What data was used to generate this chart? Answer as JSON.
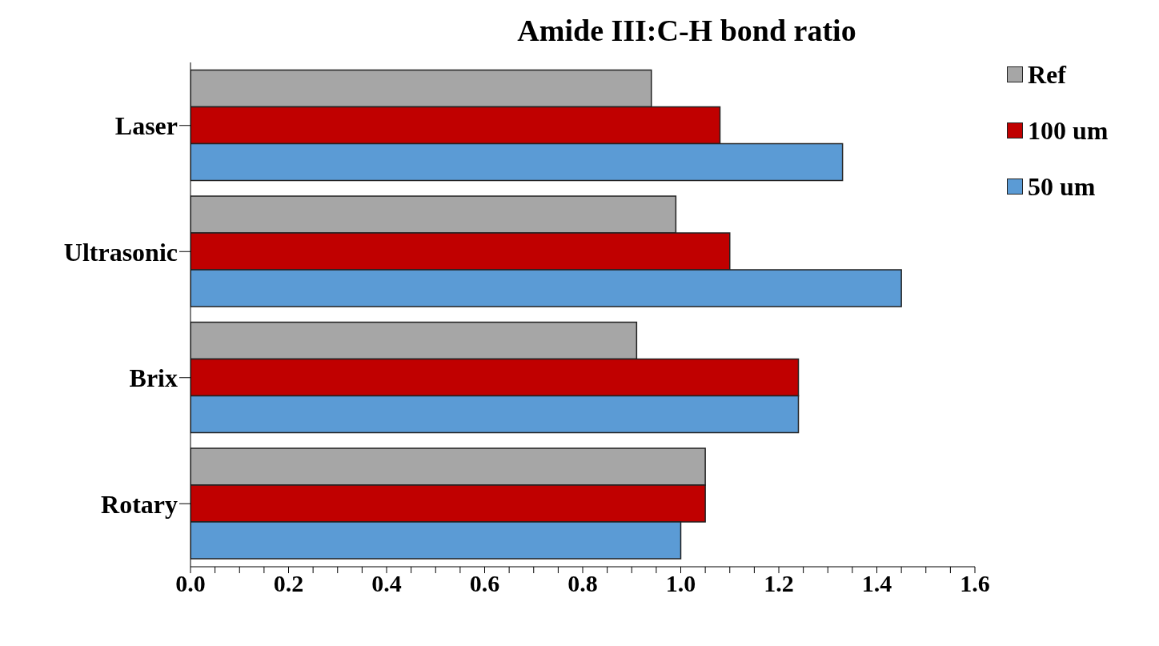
{
  "chart_data": {
    "type": "bar",
    "orientation": "horizontal",
    "title": "Amide III:C-H bond ratio",
    "categories": [
      "Laser",
      "Ultrasonic",
      "Brix",
      "Rotary"
    ],
    "series": [
      {
        "name": "Ref",
        "color": "#a6a6a6",
        "values": [
          0.94,
          0.99,
          0.91,
          1.05
        ]
      },
      {
        "name": "100 um",
        "color": "#c00000",
        "values": [
          1.08,
          1.1,
          1.24,
          1.05
        ]
      },
      {
        "name": "50 um",
        "color": "#5b9bd5",
        "values": [
          1.33,
          1.45,
          1.24,
          1.0
        ]
      }
    ],
    "xlim": [
      0,
      1.6
    ],
    "xticks": [
      "0.0",
      {
        "value": 0.05,
        "label": null
      },
      {
        "value": 0.1,
        "label": null
      },
      {
        "value": 0.15,
        "label": null
      },
      {
        "value": 0.2,
        "label": "0.2"
      },
      {
        "value": 0.25,
        "label": null
      },
      {
        "value": 0.3,
        "label": null
      },
      {
        "value": 0.35,
        "label": null
      },
      {
        "value": 0.4,
        "label": "0.4"
      },
      {
        "value": 0.45,
        "label": null
      },
      {
        "value": 0.5,
        "label": null
      },
      {
        "value": 0.55,
        "label": null
      },
      {
        "value": 0.6,
        "label": "0.6"
      },
      {
        "value": 0.65,
        "label": null
      },
      {
        "value": 0.7,
        "label": null
      },
      {
        "value": 0.75,
        "label": null
      },
      {
        "value": 0.8,
        "label": "0.8"
      },
      {
        "value": 0.85,
        "label": null
      },
      {
        "value": 0.9,
        "label": null
      },
      {
        "value": 0.95,
        "label": null
      },
      {
        "value": 1.0,
        "label": "1.0"
      },
      {
        "value": 1.05,
        "label": null
      },
      {
        "value": 1.1,
        "label": null
      },
      {
        "value": 1.15,
        "label": null
      },
      {
        "value": 1.2,
        "label": "1.2"
      },
      {
        "value": 1.25,
        "label": null
      },
      {
        "value": 1.3,
        "label": null
      },
      {
        "value": 1.35,
        "label": null
      },
      {
        "value": 1.4,
        "label": "1.4"
      },
      {
        "value": 1.45,
        "label": null
      },
      {
        "value": 1.5,
        "label": null
      },
      {
        "value": 1.55,
        "label": null
      },
      {
        "value": 1.6,
        "label": "1.6"
      }
    ],
    "grid": false,
    "legend": "top right"
  }
}
